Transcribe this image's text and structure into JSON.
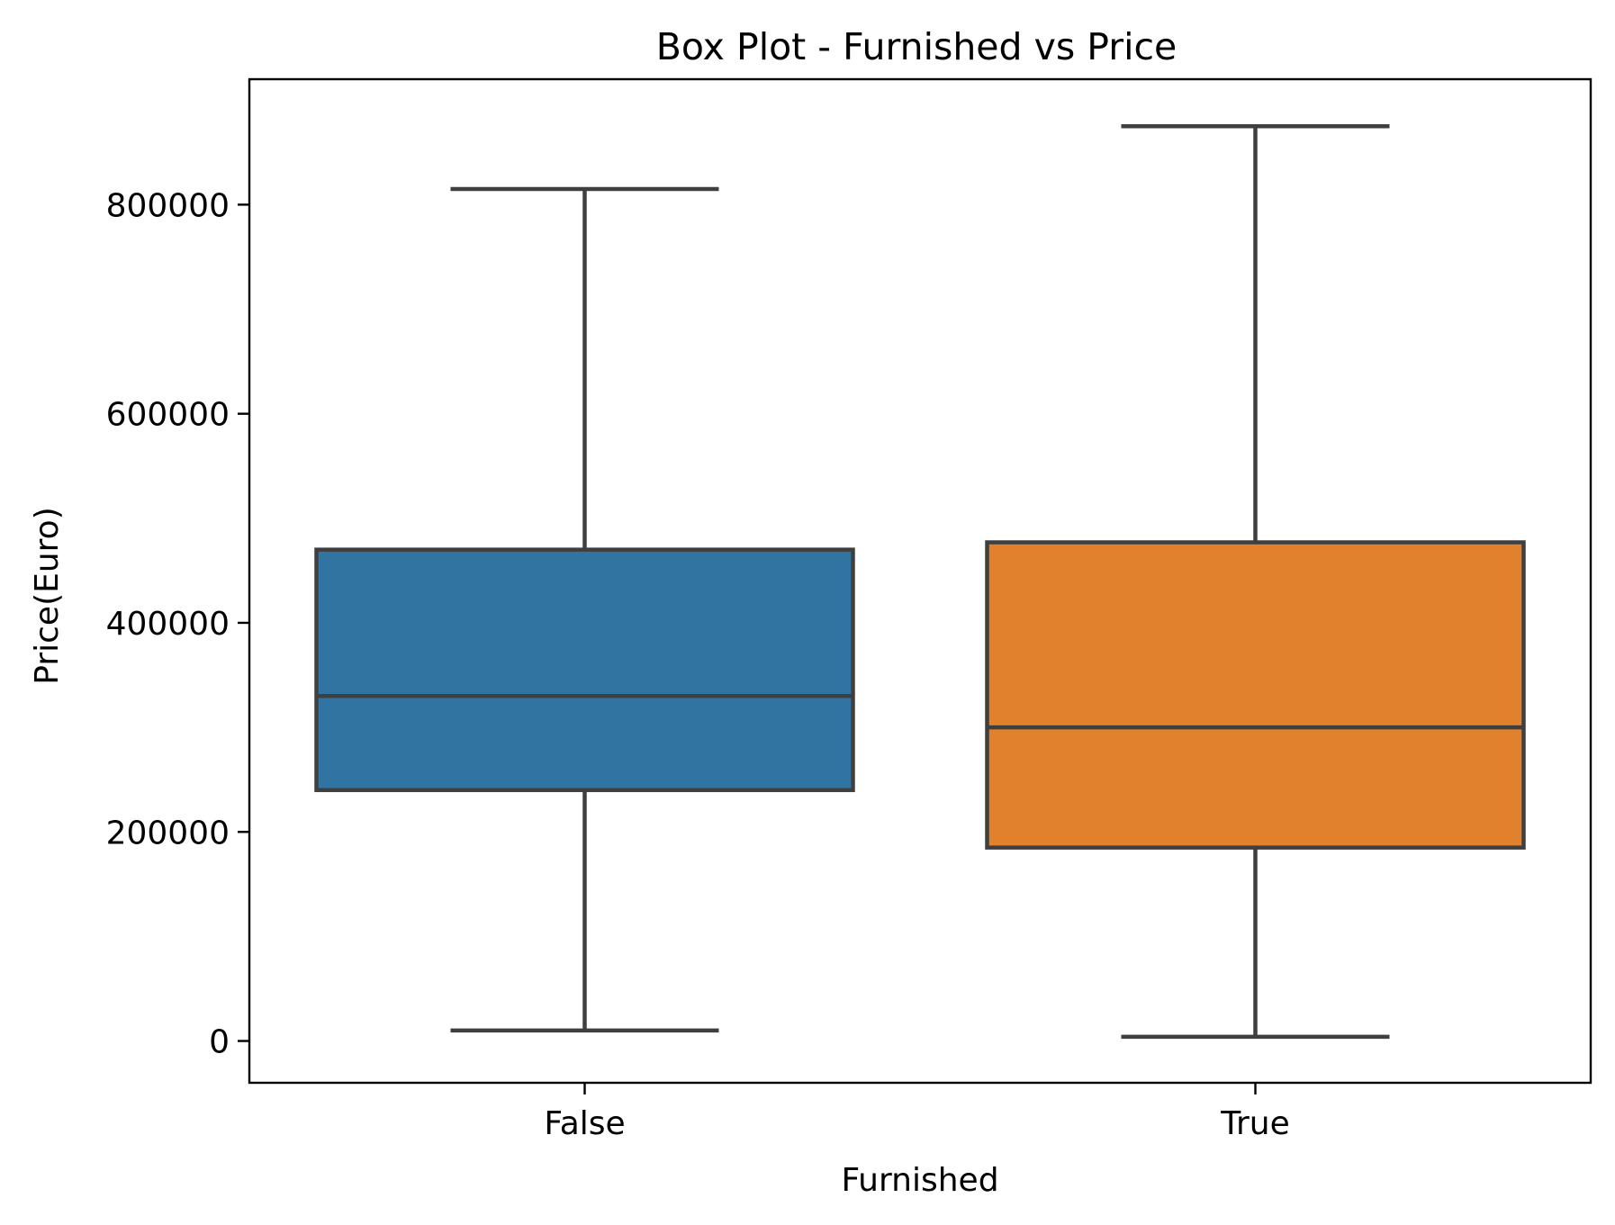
{
  "chart_data": {
    "type": "box",
    "title": "Box Plot - Furnished vs Price",
    "xlabel": "Furnished",
    "ylabel": "Price(Euro)",
    "ylim": [
      -40000,
      920000
    ],
    "yticks": [
      0,
      200000,
      400000,
      600000,
      800000
    ],
    "ytick_labels": [
      "0",
      "200000",
      "400000",
      "600000",
      "800000"
    ],
    "grid": false,
    "legend": "none",
    "line_color": "#3f3f3f",
    "categories": [
      "False",
      "True"
    ],
    "boxes": [
      {
        "category": "False",
        "color": "#3274a1",
        "whisker_low": 10000,
        "q1": 240000,
        "median": 330000,
        "q3": 470000,
        "whisker_high": 815000
      },
      {
        "category": "True",
        "color": "#e1812c",
        "whisker_low": 4000,
        "q1": 185000,
        "median": 300000,
        "q3": 477000,
        "whisker_high": 875000
      }
    ]
  }
}
